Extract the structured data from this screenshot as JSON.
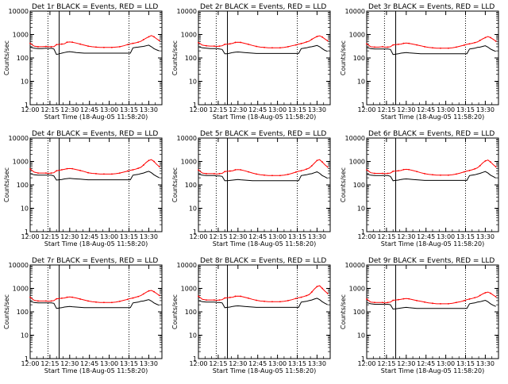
{
  "chart_data": {
    "type": "line",
    "panel_grid": "3x3",
    "y_scale": "log",
    "ylim": [
      1,
      10000
    ],
    "y_ticks": [
      "1",
      "10",
      "100",
      "1000",
      "10000"
    ],
    "x_ticks": [
      "12:00",
      "12:15",
      "12:30",
      "12:45",
      "13:00",
      "13:15",
      "13:30"
    ],
    "x_tick_minutes": [
      0,
      15,
      30,
      45,
      60,
      75,
      90
    ],
    "xlim_minutes": [
      0,
      100
    ],
    "xlabel": "Start Time (18-Aug-05 11:58:20)",
    "ylabel": "Counts/sec",
    "colors": {
      "events": "#000000",
      "lld": "#ff0000"
    },
    "x": [
      0,
      3,
      6,
      9,
      12,
      14,
      16,
      18,
      20,
      22,
      24,
      26,
      28,
      30,
      32,
      35,
      38,
      41,
      44,
      47,
      50,
      53,
      56,
      59,
      62,
      65,
      68,
      71,
      74,
      76,
      78,
      80,
      82,
      84,
      86,
      88,
      90,
      92,
      94,
      96,
      98
    ],
    "vlines_dotted_minutes": [
      13.5,
      75
    ],
    "vlines_solid_minutes": [
      22
    ],
    "panels": [
      {
        "title": "Det 1r BLACK = Events, RED = LLD",
        "series": [
          {
            "role": "lld",
            "values": [
              420,
              320,
              300,
              300,
              310,
              300,
              300,
              300,
              370,
              380,
              390,
              400,
              470,
              480,
              470,
              430,
              390,
              350,
              320,
              300,
              290,
              280,
              280,
              280,
              280,
              290,
              300,
              330,
              370,
              400,
              420,
              440,
              470,
              510,
              600,
              700,
              800,
              900,
              800,
              650,
              550
            ]
          },
          {
            "role": "events",
            "values": [
              290,
              260,
              250,
              250,
              260,
              250,
              260,
              240,
              140,
              150,
              160,
              170,
              180,
              185,
              180,
              170,
              165,
              160,
              160,
              160,
              160,
              160,
              160,
              160,
              160,
              160,
              160,
              160,
              160,
              160,
              270,
              280,
              290,
              300,
              310,
              330,
              350,
              300,
              250,
              220,
              200
            ]
          }
        ]
      },
      {
        "title": "Det 2r BLACK = Events, RED = LLD",
        "series": [
          {
            "role": "lld",
            "values": [
              450,
              350,
              330,
              320,
              320,
              310,
              320,
              330,
              380,
              390,
              400,
              420,
              460,
              470,
              460,
              420,
              380,
              340,
              310,
              290,
              280,
              270,
              270,
              270,
              270,
              280,
              300,
              330,
              360,
              390,
              410,
              440,
              480,
              520,
              620,
              720,
              820,
              880,
              780,
              640,
              540
            ]
          },
          {
            "role": "events",
            "values": [
              300,
              270,
              260,
              250,
              250,
              250,
              240,
              230,
              150,
              150,
              160,
              170,
              175,
              180,
              175,
              170,
              165,
              160,
              155,
              155,
              155,
              155,
              155,
              155,
              155,
              155,
              155,
              155,
              155,
              155,
              250,
              260,
              270,
              290,
              300,
              320,
              340,
              300,
              250,
              210,
              190
            ]
          }
        ]
      },
      {
        "title": "Det 3r BLACK = Events, RED = LLD",
        "series": [
          {
            "role": "lld",
            "values": [
              400,
              300,
              290,
              290,
              300,
              290,
              290,
              300,
              360,
              370,
              380,
              390,
              420,
              430,
              420,
              390,
              360,
              330,
              300,
              280,
              270,
              260,
              260,
              260,
              260,
              270,
              290,
              320,
              350,
              380,
              400,
              420,
              450,
              480,
              560,
              650,
              740,
              820,
              740,
              620,
              520
            ]
          },
          {
            "role": "events",
            "values": [
              280,
              250,
              240,
              240,
              240,
              240,
              240,
              230,
              140,
              145,
              150,
              160,
              165,
              170,
              165,
              160,
              155,
              150,
              150,
              150,
              150,
              150,
              150,
              150,
              150,
              150,
              150,
              150,
              150,
              150,
              240,
              250,
              260,
              280,
              290,
              310,
              330,
              290,
              240,
              210,
              190
            ]
          }
        ]
      },
      {
        "title": "Det 4r BLACK = Events, RED = LLD",
        "series": [
          {
            "role": "lld",
            "values": [
              480,
              350,
              320,
              320,
              320,
              310,
              320,
              330,
              400,
              420,
              440,
              460,
              490,
              500,
              490,
              450,
              410,
              370,
              330,
              310,
              300,
              290,
              290,
              290,
              290,
              300,
              320,
              350,
              390,
              420,
              440,
              470,
              510,
              560,
              700,
              900,
              1100,
              1200,
              1000,
              750,
              600
            ]
          },
          {
            "role": "events",
            "values": [
              300,
              270,
              260,
              260,
              260,
              260,
              260,
              240,
              160,
              165,
              170,
              180,
              185,
              190,
              185,
              180,
              175,
              170,
              165,
              165,
              165,
              165,
              165,
              165,
              165,
              165,
              165,
              165,
              165,
              165,
              260,
              270,
              280,
              300,
              320,
              350,
              380,
              330,
              270,
              230,
              200
            ]
          }
        ]
      },
      {
        "title": "Det 5r BLACK = Events, RED = LLD",
        "series": [
          {
            "role": "lld",
            "values": [
              430,
              320,
              300,
              300,
              300,
              290,
              300,
              310,
              370,
              380,
              390,
              400,
              440,
              450,
              440,
              400,
              360,
              320,
              290,
              270,
              260,
              250,
              250,
              250,
              250,
              260,
              280,
              310,
              350,
              380,
              400,
              430,
              470,
              520,
              650,
              850,
              1100,
              1200,
              950,
              720,
              580
            ]
          },
          {
            "role": "events",
            "values": [
              290,
              260,
              250,
              250,
              250,
              240,
              240,
              230,
              150,
              150,
              155,
              160,
              165,
              170,
              165,
              160,
              155,
              150,
              150,
              150,
              150,
              150,
              150,
              150,
              150,
              150,
              150,
              150,
              150,
              150,
              250,
              260,
              270,
              290,
              300,
              330,
              360,
              310,
              250,
              220,
              190
            ]
          }
        ]
      },
      {
        "title": "Det 6r BLACK = Events, RED = LLD",
        "series": [
          {
            "role": "lld",
            "values": [
              440,
              330,
              310,
              310,
              310,
              300,
              310,
              320,
              380,
              390,
              400,
              410,
              450,
              460,
              450,
              410,
              370,
              330,
              300,
              280,
              270,
              260,
              260,
              260,
              260,
              270,
              290,
              320,
              360,
              390,
              410,
              440,
              480,
              530,
              660,
              860,
              1050,
              1150,
              950,
              730,
              590
            ]
          },
          {
            "role": "events",
            "values": [
              290,
              260,
              250,
              250,
              250,
              250,
              250,
              230,
              150,
              155,
              160,
              170,
              175,
              180,
              175,
              170,
              165,
              160,
              155,
              155,
              155,
              155,
              155,
              155,
              155,
              155,
              155,
              155,
              155,
              155,
              250,
              260,
              270,
              290,
              310,
              340,
              370,
              320,
              260,
              225,
              195
            ]
          }
        ]
      },
      {
        "title": "Det 7r BLACK = Events, RED = LLD",
        "series": [
          {
            "role": "lld",
            "values": [
              420,
              310,
              290,
              290,
              290,
              280,
              290,
              300,
              360,
              370,
              380,
              390,
              420,
              430,
              420,
              390,
              350,
              320,
              290,
              270,
              260,
              250,
              250,
              250,
              250,
              260,
              280,
              310,
              340,
              370,
              390,
              420,
              450,
              490,
              580,
              680,
              780,
              820,
              720,
              600,
              500
            ]
          },
          {
            "role": "events",
            "values": [
              280,
              250,
              240,
              240,
              240,
              240,
              240,
              230,
              140,
              145,
              150,
              160,
              165,
              170,
              165,
              160,
              155,
              150,
              150,
              150,
              150,
              150,
              150,
              150,
              150,
              150,
              150,
              150,
              150,
              150,
              240,
              250,
              260,
              280,
              290,
              310,
              330,
              290,
              240,
              210,
              190
            ]
          }
        ]
      },
      {
        "title": "Det 8r BLACK = Events, RED = LLD",
        "series": [
          {
            "role": "lld",
            "values": [
              460,
              340,
              320,
              320,
              320,
              310,
              320,
              330,
              390,
              400,
              410,
              420,
              460,
              470,
              460,
              420,
              380,
              340,
              310,
              290,
              280,
              270,
              270,
              270,
              270,
              280,
              300,
              330,
              370,
              400,
              420,
              450,
              490,
              540,
              700,
              950,
              1200,
              1300,
              1000,
              760,
              610
            ]
          },
          {
            "role": "events",
            "values": [
              300,
              270,
              260,
              260,
              260,
              250,
              250,
              240,
              150,
              155,
              160,
              170,
              175,
              180,
              175,
              170,
              165,
              160,
              155,
              155,
              155,
              155,
              155,
              155,
              155,
              155,
              155,
              155,
              155,
              155,
              260,
              270,
              280,
              300,
              320,
              350,
              380,
              330,
              270,
              230,
              200
            ]
          }
        ]
      },
      {
        "title": "Det 9r BLACK = Events, RED = LLD",
        "series": [
          {
            "role": "lld",
            "values": [
              350,
              260,
              250,
              250,
              250,
              240,
              250,
              260,
              310,
              320,
              330,
              340,
              360,
              370,
              360,
              330,
              300,
              280,
              260,
              240,
              230,
              220,
              220,
              220,
              220,
              230,
              250,
              270,
              300,
              330,
              350,
              370,
              400,
              430,
              500,
              580,
              650,
              700,
              620,
              520,
              440
            ]
          },
          {
            "role": "events",
            "values": [
              250,
              220,
              210,
              210,
              210,
              210,
              210,
              200,
              130,
              135,
              140,
              145,
              150,
              155,
              150,
              145,
              140,
              140,
              140,
              140,
              140,
              140,
              140,
              140,
              140,
              140,
              140,
              140,
              140,
              140,
              220,
              230,
              240,
              260,
              270,
              290,
              310,
              270,
              220,
              190,
              170
            ]
          }
        ]
      }
    ]
  }
}
